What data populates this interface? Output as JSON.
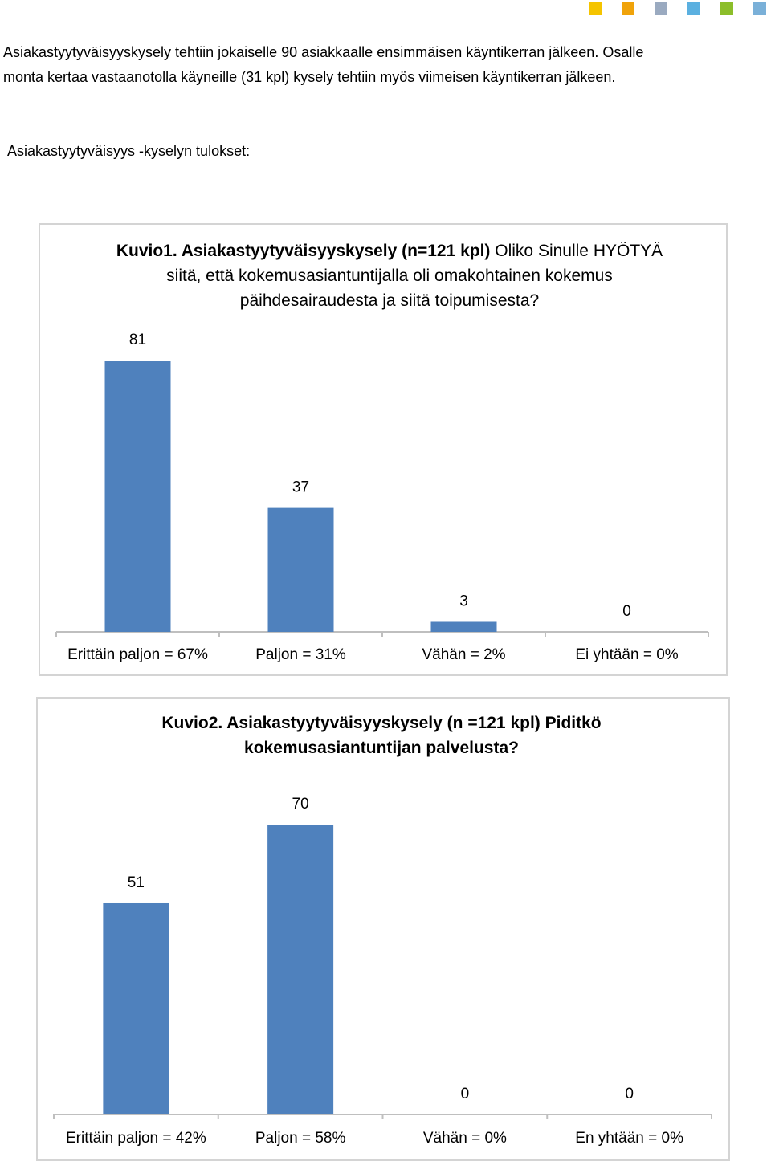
{
  "document": {
    "intro": [
      "Asiakastyytyväisyyskysely tehtiin jokaiselle 90 asiakkaalle ensimmäisen käyntikerran jälkeen. Osalle",
      "monta kertaa vastaanotolla käyneille (31 kpl) kysely tehtiin myös viimeisen käyntikerran jälkeen."
    ],
    "subheading": "Asiakastyytyväisyys -kyselyn tulokset:"
  },
  "chart_data": [
    {
      "type": "bar",
      "title": "Kuvio1. Asiakastyytyväisyyskysely (n=121 kpl)",
      "subtitle": "Oliko Sinulle HYÖTYÄ siitä, että kokemusasiantuntijalla oli omakohtainen kokemus päihdesairaudesta ja siitä toipumisesta?",
      "categories": [
        "Erittäin paljon = 67%",
        "Paljon = 31%",
        "Vähän = 2%",
        "Ei yhtään = 0%"
      ],
      "values": [
        81,
        37,
        3,
        0
      ],
      "color": "#4f81bd"
    },
    {
      "type": "bar",
      "title": "Kuvio2. Asiakastyytyväisyyskysely (n =121 kpl) Piditkö kokemusasiantuntijan palvelusta?",
      "categories": [
        "Erittäin paljon = 42%",
        "Paljon = 58%",
        "Vähän = 0%",
        "En yhtään = 0%"
      ],
      "values": [
        51,
        70,
        0,
        0
      ],
      "color": "#4f81bd"
    }
  ]
}
